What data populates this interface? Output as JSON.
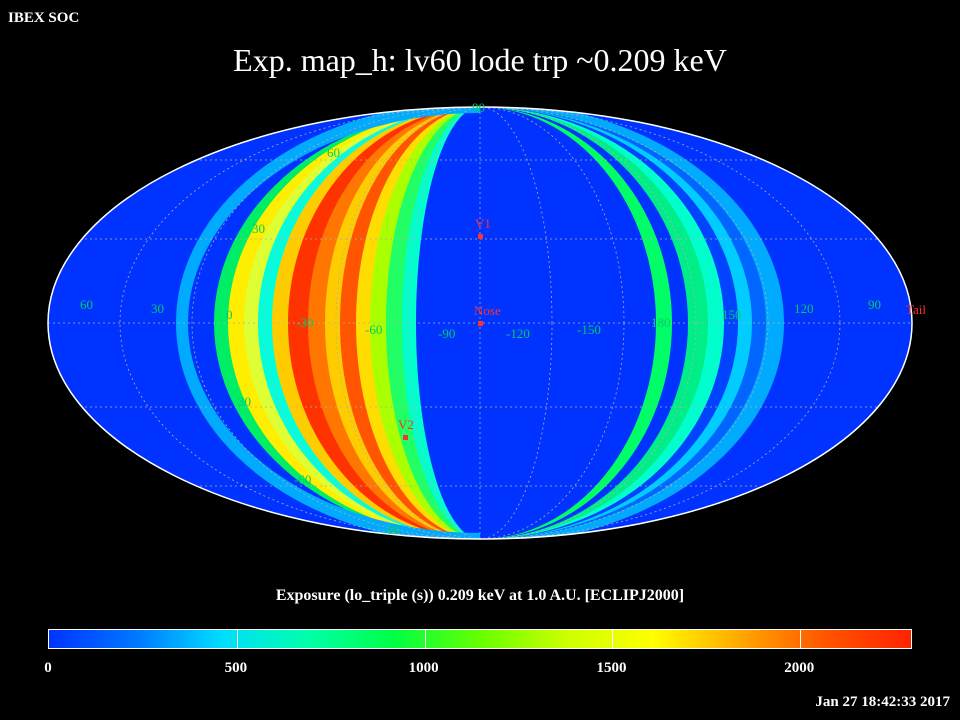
{
  "header": {
    "corner_label": "IBEX SOC",
    "title": "Exp.   map_h: lv60 lode trp ~0.209 keV"
  },
  "map": {
    "projection": "mollweide",
    "background_color": "#0033ff",
    "outline_color": "#ffffff",
    "grid_color": "#b0b0b0",
    "lon_labels": [
      "60",
      "30",
      "0",
      "-30",
      "-60",
      "-90",
      "-120",
      "-150",
      "180",
      "150",
      "120",
      "90"
    ],
    "lat_labels": [
      "90",
      "60",
      "30",
      "30",
      "-60",
      "-90"
    ],
    "markers": [
      {
        "label": "V1",
        "color": "#ff3030"
      },
      {
        "label": "Nose",
        "color": "#ff3030"
      },
      {
        "label": "V2",
        "color": "#ff3030"
      },
      {
        "label": "Tail",
        "color": "#ff3030"
      }
    ]
  },
  "colorbar": {
    "caption": "Exposure (lo_triple (s))  0.209 keV at 1.0 A.U. [ECLIPJ2000]",
    "min": 0,
    "max": 2300,
    "ticks": [
      "0",
      "500",
      "1000",
      "1500",
      "2000"
    ],
    "tick_values": [
      0,
      500,
      1000,
      1500,
      2000
    ],
    "colors": [
      "#0033ff",
      "#0077ff",
      "#00ddff",
      "#00ffaa",
      "#00ff44",
      "#66ff00",
      "#ccff00",
      "#ffff00",
      "#ffaa00",
      "#ff5500",
      "#ff2200"
    ]
  },
  "footer": {
    "timestamp": "Jan 27 18:42:33 2017"
  }
}
